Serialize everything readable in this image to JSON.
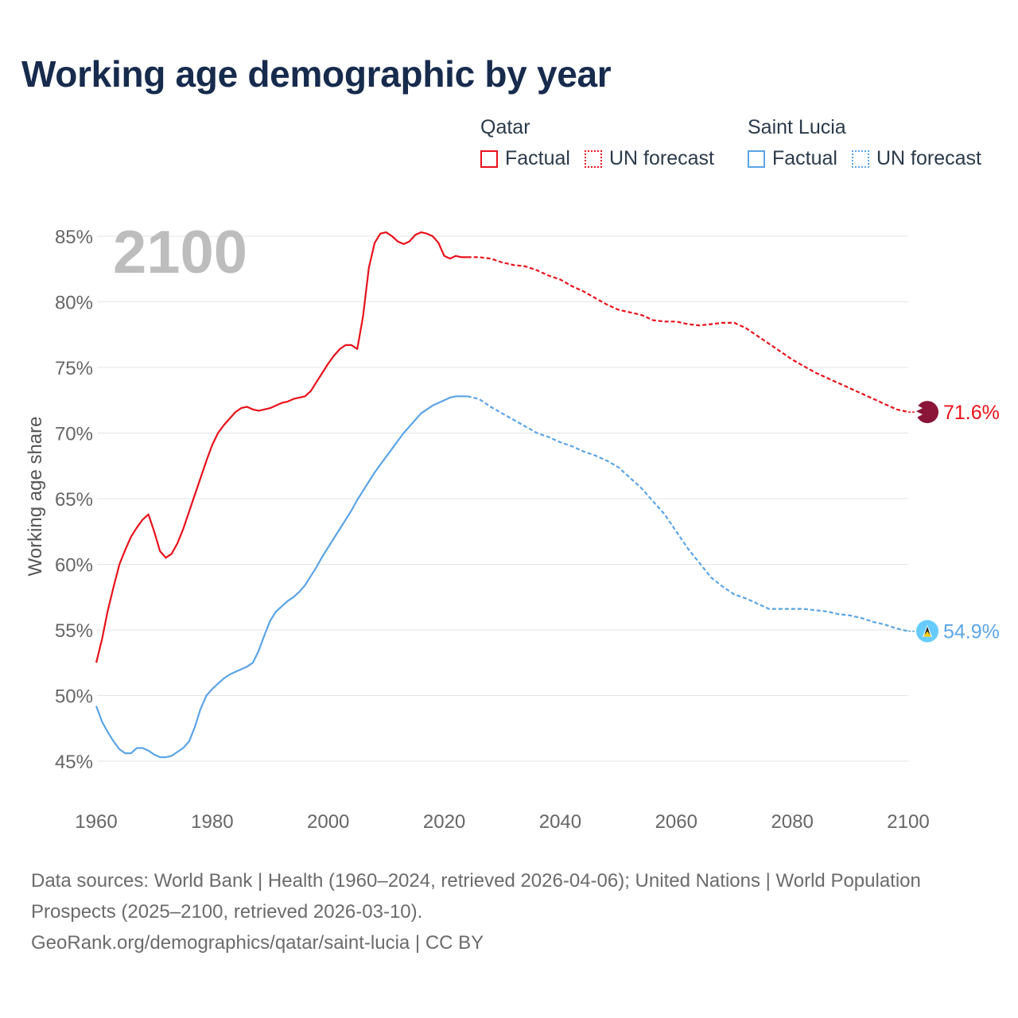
{
  "title": "Working age demographic by year",
  "legend": {
    "groups": [
      {
        "name": "Qatar",
        "color": "#e8111b",
        "factual_label": "Factual",
        "forecast_label": "UN forecast"
      },
      {
        "name": "Saint Lucia",
        "color": "#5ba4e6",
        "factual_label": "Factual",
        "forecast_label": "UN forecast"
      }
    ]
  },
  "chart_data": {
    "type": "line",
    "title": "Working age demographic by year",
    "xlabel": "",
    "ylabel": "Working age share",
    "xlim": [
      1960,
      2100
    ],
    "ylim": [
      45,
      85
    ],
    "x_ticks": [
      1960,
      1980,
      2000,
      2020,
      2040,
      2060,
      2080,
      2100
    ],
    "y_ticks": [
      45,
      50,
      55,
      60,
      65,
      70,
      75,
      80,
      85
    ],
    "y_tick_suffix": "%",
    "year_watermark": "2100",
    "grid": true,
    "series": [
      {
        "name": "Qatar",
        "color": "#e8111b",
        "end_label": "71.6%",
        "factual": {
          "x": [
            1960,
            1961,
            1962,
            1963,
            1964,
            1965,
            1966,
            1967,
            1968,
            1969,
            1970,
            1971,
            1972,
            1973,
            1974,
            1975,
            1976,
            1977,
            1978,
            1979,
            1980,
            1981,
            1982,
            1983,
            1984,
            1985,
            1986,
            1987,
            1988,
            1989,
            1990,
            1991,
            1992,
            1993,
            1994,
            1995,
            1996,
            1997,
            1998,
            1999,
            2000,
            2001,
            2002,
            2003,
            2004,
            2005,
            2006,
            2007,
            2008,
            2009,
            2010,
            2011,
            2012,
            2013,
            2014,
            2015,
            2016,
            2017,
            2018,
            2019,
            2020,
            2021,
            2022,
            2023,
            2024
          ],
          "y": [
            52.5,
            54.3,
            56.5,
            58.3,
            60.0,
            61.1,
            62.1,
            62.8,
            63.4,
            63.8,
            62.5,
            61.0,
            60.5,
            60.8,
            61.6,
            62.7,
            64.0,
            65.3,
            66.6,
            67.9,
            69.1,
            70.0,
            70.6,
            71.1,
            71.6,
            71.9,
            72.0,
            71.8,
            71.7,
            71.8,
            71.9,
            72.1,
            72.3,
            72.4,
            72.6,
            72.7,
            72.8,
            73.2,
            73.9,
            74.6,
            75.3,
            75.9,
            76.4,
            76.7,
            76.7,
            76.4,
            78.9,
            82.6,
            84.5,
            85.2,
            85.3,
            85.0,
            84.6,
            84.4,
            84.6,
            85.1,
            85.3,
            85.2,
            85.0,
            84.5,
            83.5,
            83.3,
            83.5,
            83.4,
            83.4
          ]
        },
        "forecast": {
          "x": [
            2024,
            2026,
            2028,
            2030,
            2032,
            2034,
            2036,
            2038,
            2040,
            2042,
            2044,
            2046,
            2048,
            2050,
            2052,
            2054,
            2056,
            2058,
            2060,
            2062,
            2064,
            2066,
            2068,
            2070,
            2072,
            2074,
            2076,
            2078,
            2080,
            2082,
            2084,
            2086,
            2088,
            2090,
            2092,
            2094,
            2096,
            2098,
            2100
          ],
          "y": [
            83.4,
            83.4,
            83.3,
            83.0,
            82.8,
            82.7,
            82.4,
            82.0,
            81.7,
            81.2,
            80.8,
            80.3,
            79.8,
            79.4,
            79.2,
            79.0,
            78.6,
            78.5,
            78.5,
            78.3,
            78.2,
            78.3,
            78.4,
            78.4,
            78.0,
            77.4,
            76.8,
            76.2,
            75.6,
            75.1,
            74.6,
            74.2,
            73.8,
            73.4,
            73.0,
            72.6,
            72.2,
            71.8,
            71.6
          ]
        }
      },
      {
        "name": "Saint Lucia",
        "color": "#5ba4e6",
        "end_label": "54.9%",
        "factual": {
          "x": [
            1960,
            1961,
            1962,
            1963,
            1964,
            1965,
            1966,
            1967,
            1968,
            1969,
            1970,
            1971,
            1972,
            1973,
            1974,
            1975,
            1976,
            1977,
            1978,
            1979,
            1980,
            1981,
            1982,
            1983,
            1984,
            1985,
            1986,
            1987,
            1988,
            1989,
            1990,
            1991,
            1992,
            1993,
            1994,
            1995,
            1996,
            1997,
            1998,
            1999,
            2000,
            2001,
            2002,
            2003,
            2004,
            2005,
            2006,
            2007,
            2008,
            2009,
            2010,
            2011,
            2012,
            2013,
            2014,
            2015,
            2016,
            2017,
            2018,
            2019,
            2020,
            2021,
            2022,
            2023,
            2024
          ],
          "y": [
            49.2,
            48.0,
            47.2,
            46.5,
            45.9,
            45.6,
            45.6,
            46.0,
            46.0,
            45.8,
            45.5,
            45.3,
            45.3,
            45.4,
            45.7,
            46.0,
            46.5,
            47.6,
            49.0,
            50.0,
            50.5,
            50.9,
            51.3,
            51.6,
            51.8,
            52.0,
            52.2,
            52.5,
            53.4,
            54.6,
            55.7,
            56.4,
            56.8,
            57.2,
            57.5,
            57.9,
            58.4,
            59.1,
            59.8,
            60.6,
            61.3,
            62.0,
            62.7,
            63.4,
            64.1,
            64.9,
            65.6,
            66.3,
            67.0,
            67.6,
            68.2,
            68.8,
            69.4,
            70.0,
            70.5,
            71.0,
            71.5,
            71.8,
            72.1,
            72.3,
            72.5,
            72.7,
            72.8,
            72.8,
            72.8
          ]
        },
        "forecast": {
          "x": [
            2024,
            2026,
            2028,
            2030,
            2032,
            2034,
            2036,
            2038,
            2040,
            2042,
            2044,
            2046,
            2048,
            2050,
            2052,
            2054,
            2056,
            2058,
            2060,
            2062,
            2064,
            2066,
            2068,
            2070,
            2072,
            2074,
            2076,
            2078,
            2080,
            2082,
            2084,
            2086,
            2088,
            2090,
            2092,
            2094,
            2096,
            2098,
            2100
          ],
          "y": [
            72.8,
            72.6,
            72.0,
            71.5,
            71.0,
            70.5,
            70.0,
            69.7,
            69.3,
            69.0,
            68.6,
            68.3,
            67.9,
            67.4,
            66.6,
            65.8,
            64.8,
            63.8,
            62.5,
            61.2,
            60.1,
            59.0,
            58.3,
            57.7,
            57.4,
            57.0,
            56.6,
            56.6,
            56.6,
            56.6,
            56.5,
            56.4,
            56.2,
            56.1,
            55.9,
            55.6,
            55.4,
            55.1,
            54.9
          ]
        }
      }
    ]
  },
  "footer": {
    "sources": "Data sources: World Bank | Health (1960–2024, retrieved 2026-04-06); United Nations | World Population Prospects (2025–2100, retrieved 2026-03-10).",
    "url": "GeoRank.org/demographics/qatar/saint-lucia | CC BY"
  }
}
